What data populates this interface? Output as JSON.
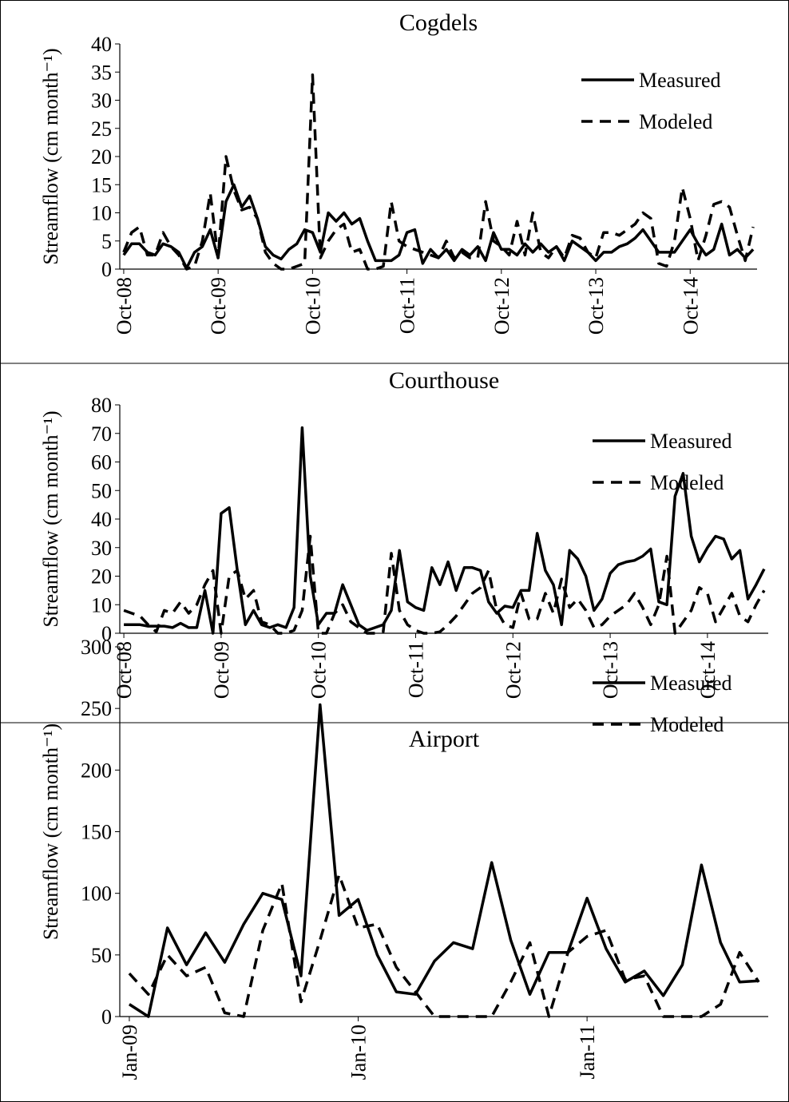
{
  "chart_data": [
    {
      "type": "line",
      "title": "Cogdels",
      "ylabel": "Streamflow (cm month⁻¹)",
      "legend": "upper right",
      "categories": [
        "Oct-08",
        null,
        null,
        null,
        null,
        null,
        null,
        null,
        null,
        null,
        null,
        null,
        "Oct-09",
        null,
        null,
        null,
        null,
        null,
        null,
        null,
        null,
        null,
        null,
        null,
        "Oct-10",
        null,
        null,
        null,
        null,
        null,
        null,
        null,
        null,
        null,
        null,
        null,
        "Oct-11",
        null,
        null,
        null,
        null,
        null,
        null,
        null,
        null,
        null,
        null,
        null,
        "Oct-12",
        null,
        null,
        null,
        null,
        null,
        null,
        null,
        null,
        null,
        null,
        null,
        "Oct-13",
        null,
        null,
        null,
        null,
        null,
        null,
        null,
        null,
        null,
        null,
        null,
        "Oct-14",
        null,
        null,
        null,
        null,
        null,
        null,
        null,
        null
      ],
      "ylim": [
        0,
        40
      ],
      "yticks": [
        0,
        5,
        10,
        15,
        20,
        25,
        30,
        35,
        40
      ],
      "series": [
        {
          "name": "Measured",
          "color": "#000000",
          "line_style": "solid",
          "values": [
            2.5,
            4.5,
            4.5,
            3,
            2.5,
            4.5,
            4,
            3,
            0.2,
            3,
            4,
            7,
            2,
            12,
            15,
            11,
            13,
            9,
            4,
            2.5,
            1.8,
            3.5,
            4.5,
            7,
            6.5,
            3,
            10,
            8.5,
            10,
            8,
            9,
            5,
            1.5,
            1.5,
            1.5,
            2.5,
            6.5,
            7,
            1,
            3.5,
            2,
            3.5,
            1.5,
            3.5,
            2.5,
            4,
            1.5,
            6.5,
            3.5,
            3.5,
            2.5,
            4.5,
            3,
            4.5,
            3,
            4,
            1.5,
            5,
            4,
            3,
            1.5,
            3,
            3,
            4,
            4.5,
            5.5,
            7,
            5,
            3,
            3,
            3,
            5,
            7,
            4.5,
            2.5,
            3.5,
            8,
            2.5,
            3.5,
            2,
            3.5
          ]
        },
        {
          "name": "Modeled",
          "color": "#000000",
          "line_style": "dashed",
          "values": [
            3,
            6.5,
            7.5,
            2.5,
            2.5,
            6.5,
            4,
            2.5,
            0,
            0.5,
            5,
            13.5,
            2,
            20,
            14,
            10.5,
            11,
            9,
            3,
            1,
            0,
            0,
            0.5,
            1,
            34.5,
            2,
            5,
            7,
            8,
            3,
            3.5,
            0,
            0,
            0.5,
            12,
            5,
            4,
            3.5,
            3,
            2.5,
            2,
            5,
            2,
            3,
            2,
            2,
            12,
            5,
            4,
            2.5,
            8.5,
            2.5,
            10,
            3,
            2,
            4,
            2,
            6,
            5.5,
            3,
            2,
            6.5,
            6.5,
            6,
            7,
            8,
            10,
            9,
            1,
            0.5,
            5,
            14.5,
            9,
            1.5,
            6,
            11.5,
            12,
            11,
            6,
            1.5,
            7.5
          ]
        }
      ]
    },
    {
      "type": "line",
      "title": "Courthouse",
      "ylabel": "Streamflow (cm month⁻¹)",
      "legend": "upper right",
      "categories": [
        "Oct-08",
        null,
        null,
        null,
        null,
        null,
        null,
        null,
        null,
        null,
        null,
        null,
        "Oct-09",
        null,
        null,
        null,
        null,
        null,
        null,
        null,
        null,
        null,
        null,
        null,
        "Oct-10",
        null,
        null,
        null,
        null,
        null,
        null,
        null,
        null,
        null,
        null,
        null,
        "Oct-11",
        null,
        null,
        null,
        null,
        null,
        null,
        null,
        null,
        null,
        null,
        null,
        "Oct-12",
        null,
        null,
        null,
        null,
        null,
        null,
        null,
        null,
        null,
        null,
        null,
        "Oct-13",
        null,
        null,
        null,
        null,
        null,
        null,
        null,
        null,
        null,
        null,
        null,
        "Oct-14",
        null,
        null,
        null,
        null,
        null,
        null,
        null
      ],
      "ylim": [
        0,
        80
      ],
      "yticks": [
        0,
        10,
        20,
        30,
        40,
        50,
        60,
        70,
        80
      ],
      "series": [
        {
          "name": "Measured",
          "color": "#000000",
          "line_style": "solid",
          "values": [
            3,
            3,
            3,
            2.5,
            2.5,
            2.5,
            2,
            3.5,
            2,
            2,
            15,
            0,
            42,
            44,
            22,
            3,
            8,
            3,
            2,
            3,
            2,
            9,
            72,
            20,
            3,
            7,
            7,
            17,
            10,
            3,
            1,
            2,
            3,
            8,
            29,
            11,
            9,
            8,
            23,
            17,
            25,
            15,
            23,
            23,
            22,
            11,
            7,
            9.5,
            9,
            15,
            15,
            35,
            22,
            17,
            3,
            29,
            26,
            20,
            8,
            12,
            21,
            24,
            25,
            25.5,
            27,
            29.5,
            11,
            10,
            48,
            56,
            34,
            25,
            30,
            34,
            33,
            26,
            29,
            12,
            17,
            22.5
          ]
        },
        {
          "name": "Modeled",
          "color": "#000000",
          "line_style": "dashed",
          "values": [
            8,
            7,
            6,
            3,
            0.5,
            8,
            7,
            11,
            7,
            10,
            17,
            22,
            0,
            20,
            22,
            12,
            15,
            4,
            3,
            0,
            0,
            1,
            8,
            34,
            0,
            0,
            7,
            10,
            4,
            2,
            0,
            0,
            0.5,
            28,
            8,
            3,
            1,
            0,
            0,
            0.5,
            3,
            6,
            10,
            14,
            16,
            22,
            8,
            3,
            2,
            14,
            5,
            5,
            14,
            7,
            19,
            9,
            12,
            8,
            2,
            3,
            6,
            8,
            10,
            14,
            9,
            3,
            10,
            27,
            0,
            4,
            8,
            16,
            14,
            4,
            9,
            14,
            6,
            4,
            10,
            15
          ]
        }
      ]
    },
    {
      "type": "line",
      "title": "Airport",
      "ylabel": "Streamflow (cm month⁻¹)",
      "legend": "upper right",
      "categories": [
        "Jan-09",
        null,
        null,
        null,
        null,
        null,
        null,
        null,
        null,
        null,
        null,
        null,
        "Jan-10",
        null,
        null,
        null,
        null,
        null,
        null,
        null,
        null,
        null,
        null,
        null,
        "Jan-11",
        null,
        null,
        null,
        null,
        null,
        null,
        null,
        null,
        null
      ],
      "ylim": [
        0,
        300
      ],
      "yticks": [
        0,
        50,
        100,
        150,
        200,
        250,
        300
      ],
      "series": [
        {
          "name": "Measured",
          "color": "#000000",
          "line_style": "solid",
          "values": [
            10,
            0,
            72,
            42,
            68,
            44,
            75,
            100,
            95,
            33,
            253,
            82,
            95,
            50,
            20,
            18,
            45,
            60,
            55,
            125,
            62,
            18,
            52,
            52,
            96,
            55,
            28,
            37,
            17,
            42,
            123,
            60,
            28,
            29
          ]
        },
        {
          "name": "Modeled",
          "color": "#000000",
          "line_style": "dashed",
          "values": [
            35,
            18,
            50,
            33,
            40,
            3,
            0,
            70,
            108,
            12,
            62,
            115,
            72,
            75,
            40,
            20,
            0,
            0,
            0,
            0,
            28,
            60,
            0,
            52,
            65,
            70,
            30,
            33,
            0,
            0,
            0,
            10,
            52,
            28
          ]
        }
      ]
    }
  ]
}
